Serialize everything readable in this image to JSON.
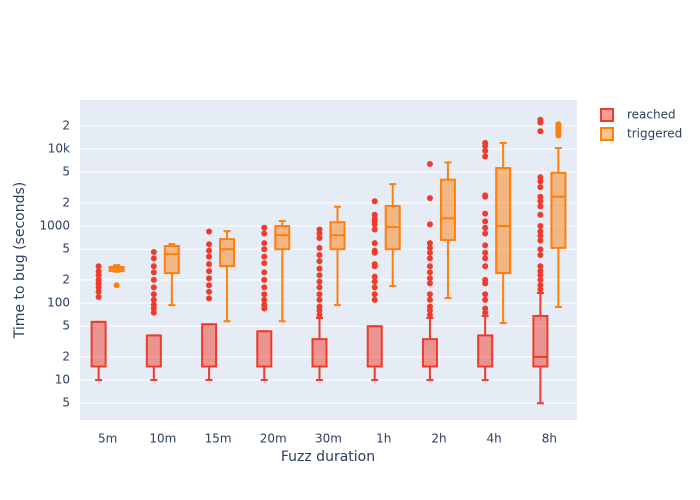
{
  "chart_data": {
    "type": "box",
    "xlabel": "Fuzz duration",
    "ylabel": "Time to bug (seconds)",
    "categories": [
      "5m",
      "10m",
      "15m",
      "20m",
      "30m",
      "1h",
      "2h",
      "4h",
      "8h"
    ],
    "log_y": true,
    "grid": true,
    "legend": "top-right",
    "ylim": [
      3.03,
      43300
    ],
    "yticks": [
      {
        "value": 5,
        "label": "5"
      },
      10,
      {
        "value": 20,
        "label": "2"
      },
      {
        "value": 50,
        "label": "5"
      },
      100,
      {
        "value": 200,
        "label": "2"
      },
      {
        "value": 500,
        "label": "5"
      },
      1000,
      {
        "value": 2000,
        "label": "2"
      },
      {
        "value": 5000,
        "label": "5"
      },
      {
        "value": 10000,
        "label": "10k"
      },
      {
        "value": 20000,
        "label": "2"
      }
    ],
    "series": [
      {
        "name": "reached",
        "color": "#ef3b2c",
        "values": [
          {
            "low": 10,
            "q1": 15,
            "median": 15,
            "q3": 57,
            "high": 57,
            "outliers": [
              120,
              140,
              160,
              180,
              200,
              230,
              260,
              300
            ]
          },
          {
            "low": 10,
            "q1": 15,
            "median": 15,
            "q3": 38,
            "high": 38,
            "outliers": [
              75,
              85,
              95,
              110,
              130,
              160,
              200,
              250,
              300,
              380,
              460
            ]
          },
          {
            "low": 10,
            "q1": 15,
            "median": 15,
            "q3": 53,
            "high": 53,
            "outliers": [
              115,
              140,
              170,
              210,
              260,
              320,
              400,
              480,
              580,
              850
            ]
          },
          {
            "low": 10,
            "q1": 15,
            "median": 15,
            "q3": 43,
            "high": 43,
            "outliers": [
              85,
              95,
              110,
              130,
              160,
              200,
              250,
              330,
              400,
              500,
              600,
              800,
              950
            ]
          },
          {
            "low": 10,
            "q1": 15,
            "median": 15,
            "q3": 34,
            "high": 64,
            "outliers": [
              70,
              80,
              90,
              110,
              130,
              160,
              190,
              230,
              280,
              350,
              420,
              520,
              700,
              800,
              900
            ]
          },
          {
            "low": 10,
            "q1": 15,
            "median": 15,
            "q3": 50,
            "high": 50,
            "outliers": [
              110,
              130,
              160,
              190,
              220,
              300,
              320,
              450,
              480,
              600,
              900,
              1050,
              1150,
              1250,
              1400,
              2100
            ]
          },
          {
            "low": 10,
            "q1": 15,
            "median": 15,
            "q3": 34,
            "high": 64,
            "outliers": [
              70,
              80,
              90,
              110,
              130,
              180,
              210,
              250,
              300,
              380,
              450,
              520,
              600,
              1050,
              2300,
              6400
            ]
          },
          {
            "low": 10,
            "q1": 15,
            "median": 15,
            "q3": 38,
            "high": 68,
            "outliers": [
              75,
              85,
              110,
              130,
              180,
              200,
              300,
              380,
              450,
              560,
              800,
              950,
              1150,
              1450,
              2400,
              2500,
              8000,
              9500,
              11000,
              12000
            ]
          },
          {
            "low": 5,
            "q1": 15,
            "median": 20,
            "q3": 68,
            "high": 135,
            "outliers": [
              150,
              170,
              200,
              230,
              260,
              300,
              420,
              500,
              650,
              750,
              850,
              1000,
              1400,
              1800,
              2100,
              2400,
              3200,
              3800,
              4300,
              17000,
              22000,
              24000
            ]
          }
        ]
      },
      {
        "name": "triggered",
        "color": "#ff7f0e",
        "values": [
          {
            "low": 255,
            "q1": 260,
            "median": 280,
            "q3": 294,
            "high": 310,
            "outliers": [
              170
            ]
          },
          {
            "low": 94,
            "q1": 245,
            "median": 432,
            "q3": 550,
            "high": 583,
            "outliers": []
          },
          {
            "low": 58,
            "q1": 302,
            "median": 500,
            "q3": 676,
            "high": 860,
            "outliers": []
          },
          {
            "low": 58,
            "q1": 500,
            "median": 760,
            "q3": 1000,
            "high": 1160,
            "outliers": []
          },
          {
            "low": 94,
            "q1": 500,
            "median": 760,
            "q3": 1120,
            "high": 1780,
            "outliers": []
          },
          {
            "low": 166,
            "q1": 500,
            "median": 970,
            "q3": 1820,
            "high": 3500,
            "outliers": []
          },
          {
            "low": 116,
            "q1": 660,
            "median": 1260,
            "q3": 4000,
            "high": 6700,
            "outliers": []
          },
          {
            "low": 55,
            "q1": 245,
            "median": 1000,
            "q3": 5660,
            "high": 12000,
            "outliers": []
          },
          {
            "low": 89,
            "q1": 520,
            "median": 2400,
            "q3": 4900,
            "high": 10300,
            "outliers": [
              15000,
              16000,
              17000,
              18000,
              19000,
              20000,
              21000
            ]
          }
        ]
      }
    ]
  }
}
